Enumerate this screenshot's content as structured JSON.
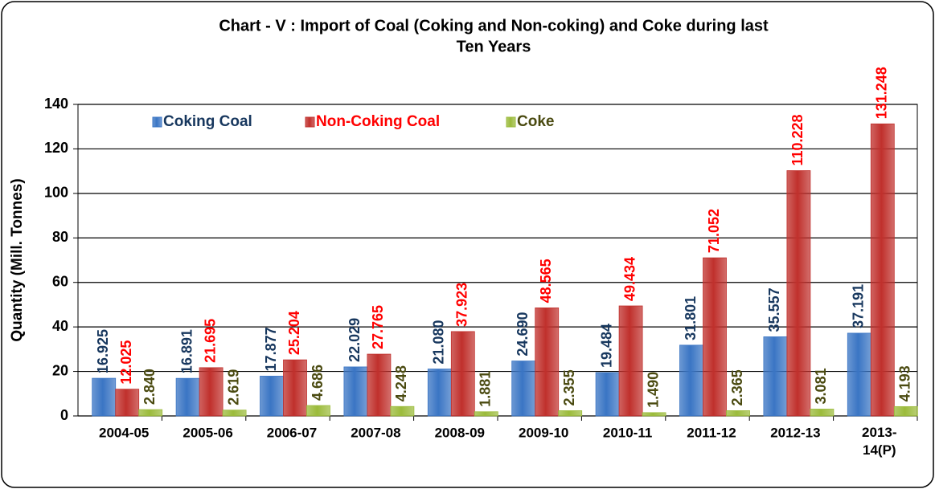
{
  "chart_data": {
    "type": "bar",
    "title": [
      "Chart - V : Import of Coal (Coking and Non-coking) and Coke during last",
      "Ten Years"
    ],
    "y_label": "Quantity (Mill. Tonnes)",
    "categories": [
      "2004-05",
      "2005-06",
      "2006-07",
      "2007-08",
      "2008-09",
      "2009-10",
      "2010-11",
      "2011-12",
      "2012-13",
      "2013-14(P)"
    ],
    "series": [
      {
        "name": "Coking Coal",
        "color": "#3a75c4",
        "label_color": "#17375e",
        "values": [
          16.925,
          16.891,
          17.877,
          22.029,
          21.08,
          24.69,
          19.484,
          31.801,
          35.557,
          37.191
        ],
        "value_labels": [
          "16.925",
          "16.891",
          "17.877",
          "22.029",
          "21.080",
          "24.690",
          "19.484",
          "31.801",
          "35.557",
          "37.191"
        ]
      },
      {
        "name": "Non-Coking Coal",
        "color": "#c0302c",
        "label_color": "#ff0000",
        "values": [
          12.025,
          21.695,
          25.204,
          27.765,
          37.923,
          48.565,
          49.434,
          71.052,
          110.228,
          131.248
        ],
        "value_labels": [
          "12.025",
          "21.695",
          "25.204",
          "27.765",
          "37.923",
          "48.565",
          "49.434",
          "71.052",
          "110.228",
          "131.248"
        ]
      },
      {
        "name": "Coke",
        "color": "#9bbb3b",
        "label_color": "#4a4a10",
        "values": [
          2.84,
          2.619,
          4.686,
          4.248,
          1.881,
          2.355,
          1.49,
          2.365,
          3.081,
          4.193
        ],
        "value_labels": [
          "2.840",
          "2.619",
          "4.686",
          "4.248",
          "1.881",
          "2.355",
          "1.490",
          "2.365",
          "3.081",
          "4.193"
        ]
      }
    ],
    "ylim": [
      0,
      140
    ],
    "yticks": [
      0,
      20,
      40,
      60,
      80,
      100,
      120,
      140
    ],
    "grid": true,
    "legend": "top-left"
  }
}
